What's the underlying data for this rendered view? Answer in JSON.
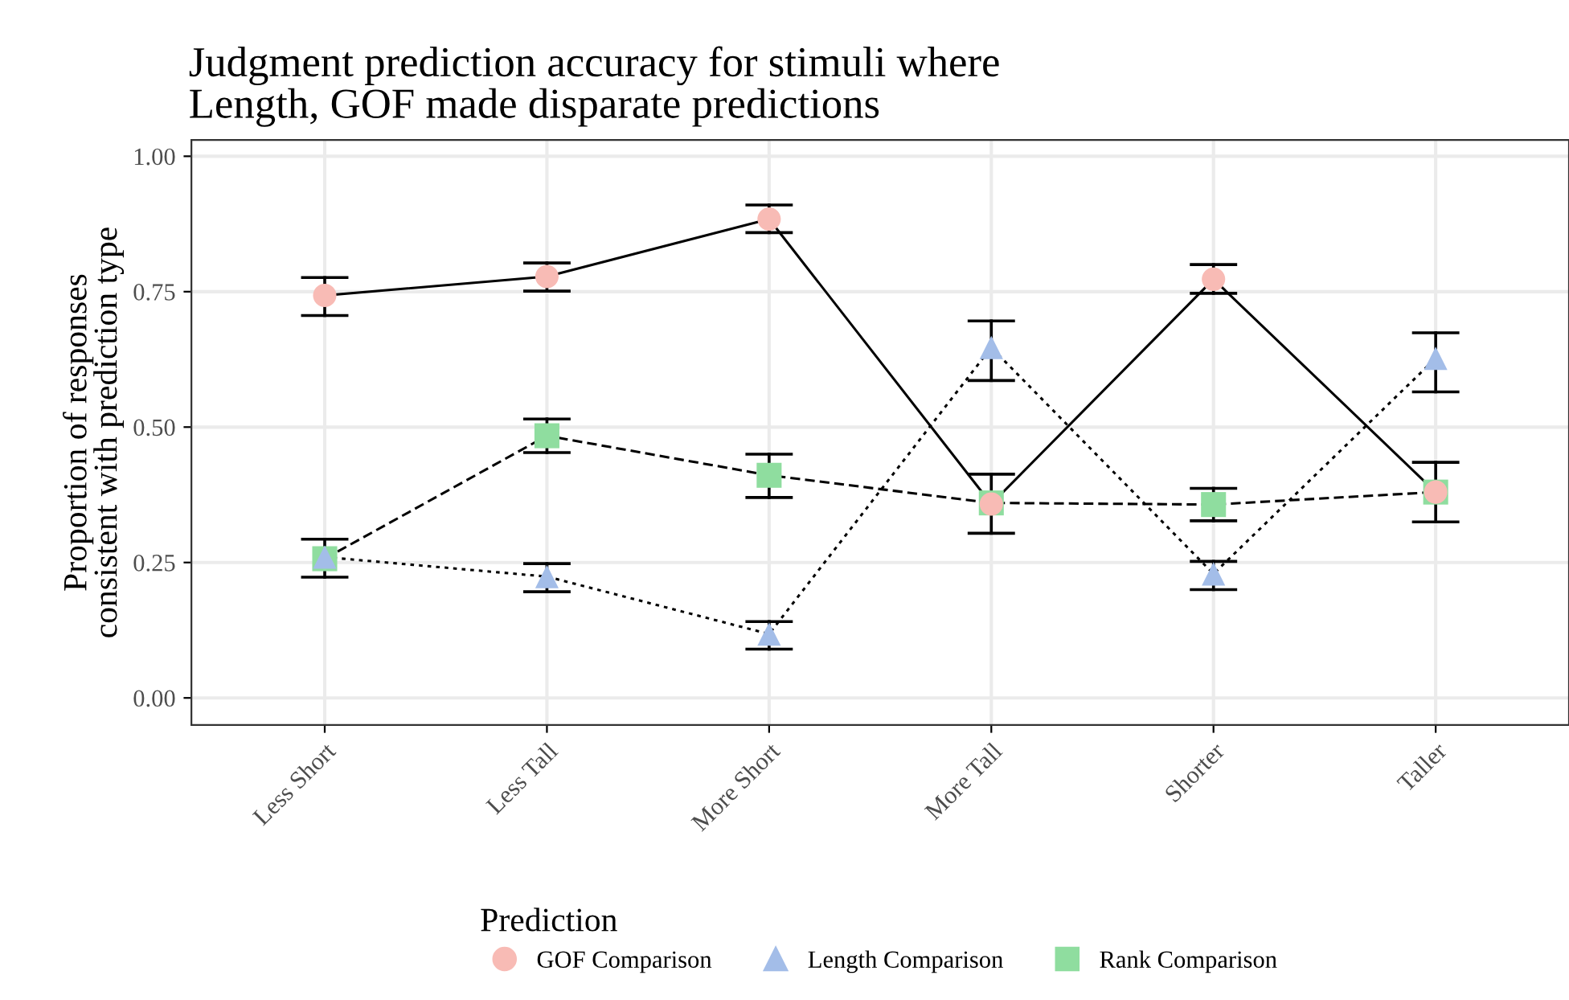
{
  "chart_data": {
    "type": "line",
    "title": "Judgment prediction accuracy for stimuli where\nLength, GOF made disparate predictions",
    "ylabel": "Proportion of responses\nconsistent with prediction type",
    "legend_title": "Prediction",
    "categories": [
      "Less Short",
      "Less Tall",
      "More Short",
      "More Tall",
      "Shorter",
      "Taller"
    ],
    "series": [
      {
        "name": "GOF Comparison",
        "color": "#f8bbb5",
        "marker": "circle",
        "line_style": "solid",
        "values": [
          0.743,
          0.778,
          0.884,
          0.358,
          0.773,
          0.38
        ],
        "errors": [
          [
            0.706,
            0.776
          ],
          [
            0.751,
            0.803
          ],
          [
            0.859,
            0.91
          ],
          [
            0.304,
            0.413
          ],
          [
            0.747,
            0.8
          ],
          [
            0.325,
            0.435
          ]
        ]
      },
      {
        "name": "Length Comparison",
        "color": "#a3bde8",
        "marker": "triangle",
        "line_style": "dotted",
        "values": [
          0.26,
          0.224,
          0.118,
          0.647,
          0.229,
          0.627
        ],
        "errors": [
          [
            0.223,
            0.293
          ],
          [
            0.196,
            0.248
          ],
          [
            0.09,
            0.141
          ],
          [
            0.586,
            0.696
          ],
          [
            0.2,
            0.252
          ],
          [
            0.565,
            0.674
          ]
        ]
      },
      {
        "name": "Rank Comparison",
        "color": "#8fdd9f",
        "marker": "square",
        "line_style": "dashed",
        "values": [
          0.257,
          0.484,
          0.411,
          0.36,
          0.357,
          0.38
        ],
        "errors": [
          null,
          [
            0.453,
            0.515
          ],
          [
            0.37,
            0.45
          ],
          null,
          [
            0.327,
            0.387
          ],
          null
        ]
      }
    ],
    "ylim": [
      -0.05,
      1.03
    ],
    "yticks": [
      {
        "value": 0,
        "label": "0.00"
      },
      {
        "value": 0.25,
        "label": "0.25"
      },
      {
        "value": 0.5,
        "label": "0.50"
      },
      {
        "value": 0.75,
        "label": "0.75"
      },
      {
        "value": 1,
        "label": "1.00"
      }
    ],
    "grid": true,
    "legend": "bottom"
  }
}
